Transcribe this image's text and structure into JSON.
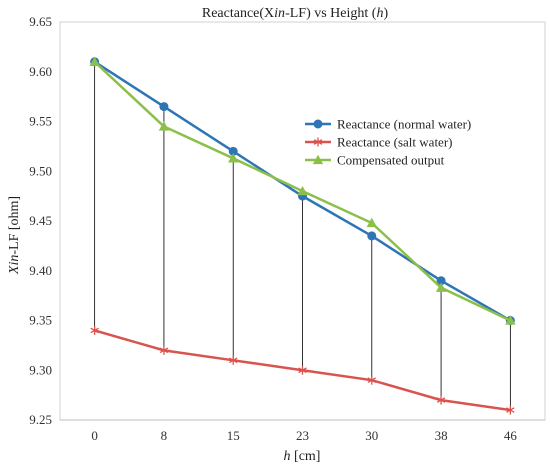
{
  "chart_data": {
    "type": "line",
    "title": "Reactance(Xin-LF) vs Height (h)",
    "title_parts": [
      "Reactance(X",
      "in",
      "-LF) vs Height (",
      "h",
      ")"
    ],
    "xlabel_parts": [
      "h",
      " [cm]"
    ],
    "ylabel_parts": [
      "X",
      "in",
      "-LF [ohm]"
    ],
    "categories": [
      "0",
      "8",
      "15",
      "23",
      "30",
      "38",
      "46"
    ],
    "ylim": [
      9.25,
      9.65
    ],
    "yticks": [
      "9.25",
      "9.30",
      "9.35",
      "9.40",
      "9.45",
      "9.50",
      "9.55",
      "9.60",
      "9.65"
    ],
    "grid": false,
    "legend_position": "right",
    "series": [
      {
        "name": "Reactance (normal water)",
        "values": [
          9.61,
          9.565,
          9.52,
          9.475,
          9.435,
          9.39,
          9.35
        ],
        "color": "#2e75b6",
        "marker": "circle"
      },
      {
        "name": "Reactance (salt water)",
        "values": [
          9.34,
          9.32,
          9.31,
          9.3,
          9.29,
          9.27,
          9.26
        ],
        "color": "#d9534f",
        "marker": "star"
      },
      {
        "name": "Compensated output",
        "values": [
          9.61,
          9.545,
          9.513,
          9.48,
          9.448,
          9.383,
          9.35
        ],
        "color": "#8cbf4a",
        "marker": "triangle"
      }
    ],
    "drop_lines": {
      "from_series": 0,
      "to_series": 1,
      "color": "#000000"
    }
  }
}
